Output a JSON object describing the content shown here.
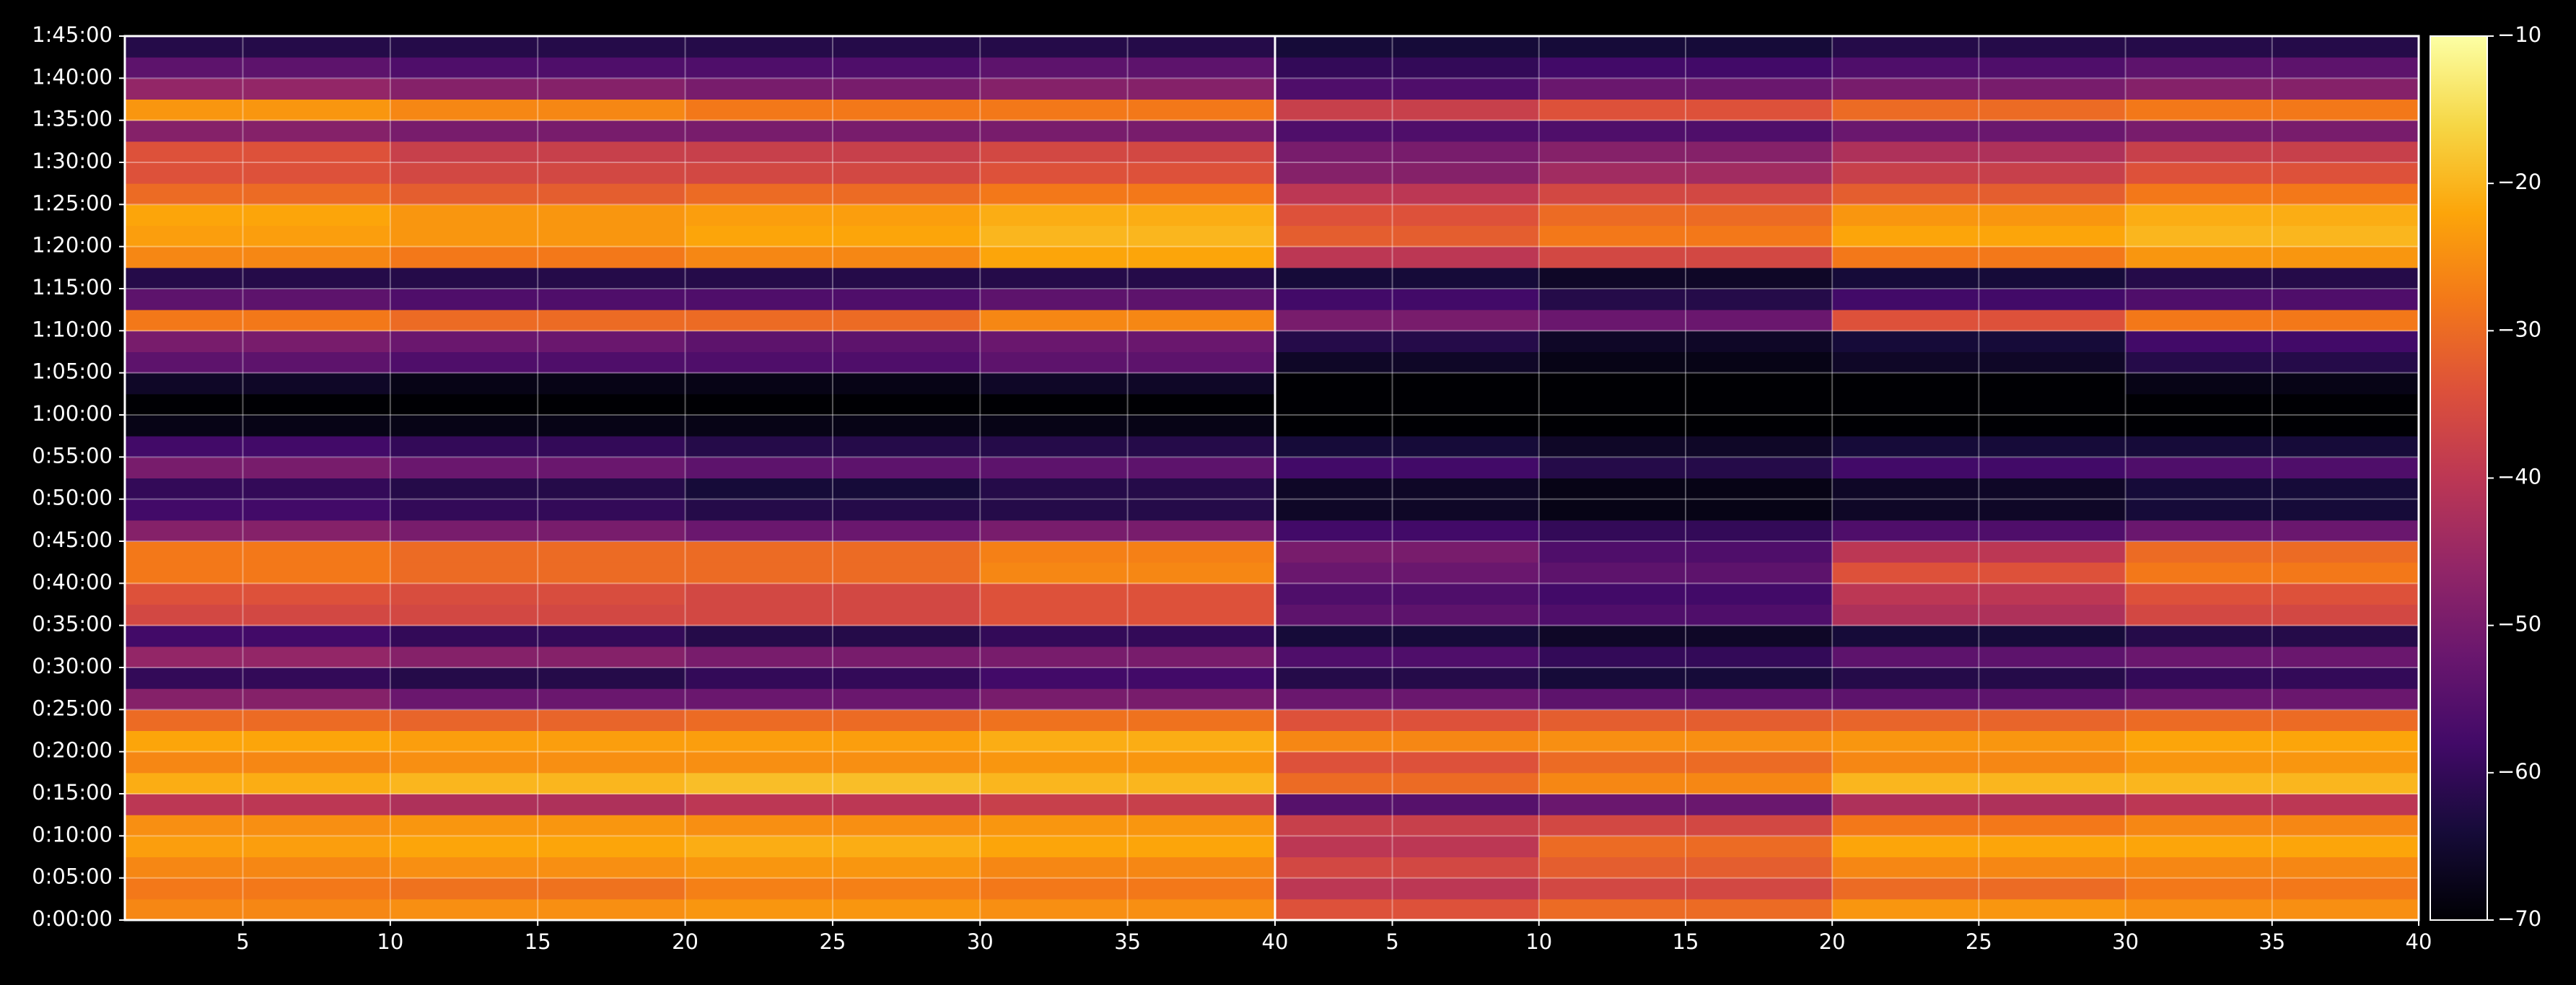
{
  "chart_data": {
    "type": "heatmap",
    "colormap": "inferno",
    "grid": true,
    "ylim": [
      0,
      105
    ],
    "yticks": [
      {
        "value": 0,
        "label": "0:00:00"
      },
      {
        "value": 5,
        "label": "0:05:00"
      },
      {
        "value": 10,
        "label": "0:10:00"
      },
      {
        "value": 15,
        "label": "0:15:00"
      },
      {
        "value": 20,
        "label": "0:20:00"
      },
      {
        "value": 25,
        "label": "0:25:00"
      },
      {
        "value": 30,
        "label": "0:30:00"
      },
      {
        "value": 35,
        "label": "0:35:00"
      },
      {
        "value": 40,
        "label": "0:40:00"
      },
      {
        "value": 45,
        "label": "0:45:00"
      },
      {
        "value": 50,
        "label": "0:50:00"
      },
      {
        "value": 55,
        "label": "0:55:00"
      },
      {
        "value": 60,
        "label": "1:00:00"
      },
      {
        "value": 65,
        "label": "1:05:00"
      },
      {
        "value": 70,
        "label": "1:10:00"
      },
      {
        "value": 75,
        "label": "1:15:00"
      },
      {
        "value": 80,
        "label": "1:20:00"
      },
      {
        "value": 85,
        "label": "1:25:00"
      },
      {
        "value": 90,
        "label": "1:30:00"
      },
      {
        "value": 95,
        "label": "1:35:00"
      },
      {
        "value": 100,
        "label": "1:40:00"
      },
      {
        "value": 105,
        "label": "1:45:00"
      }
    ],
    "y_edges": [
      0,
      2.5,
      5,
      7.5,
      10,
      12.5,
      15,
      17.5,
      20,
      22.5,
      25,
      27.5,
      30,
      32.5,
      35,
      37.5,
      40,
      42.5,
      45,
      47.5,
      50,
      52.5,
      55,
      57.5,
      60,
      62.5,
      65,
      67.5,
      70,
      72.5,
      75,
      77.5,
      80,
      82.5,
      85,
      87.5,
      90,
      92.5,
      95,
      97.5,
      100,
      102.5,
      105
    ],
    "colorbar": {
      "zlim": [
        -70,
        -10
      ],
      "ticks": [
        {
          "value": -10,
          "label": "−10"
        },
        {
          "value": -20,
          "label": "−20"
        },
        {
          "value": -30,
          "label": "−30"
        },
        {
          "value": -40,
          "label": "−40"
        },
        {
          "value": -50,
          "label": "−50"
        },
        {
          "value": -60,
          "label": "−60"
        },
        {
          "value": -70,
          "label": "−70"
        }
      ]
    },
    "panels": [
      {
        "xlim": [
          1,
          40
        ],
        "xticks": [
          5,
          10,
          15,
          20,
          25,
          30,
          35,
          40
        ],
        "x_edges": [
          1,
          10,
          20,
          30,
          40
        ],
        "values": [
          [
            -26,
            -25,
            -24,
            -25
          ],
          [
            -28,
            -29,
            -27,
            -28
          ],
          [
            -26,
            -25,
            -24,
            -26
          ],
          [
            -23,
            -22,
            -21,
            -22
          ],
          [
            -25,
            -24,
            -25,
            -24
          ],
          [
            -40,
            -42,
            -40,
            -38
          ],
          [
            -21,
            -20,
            -19,
            -20
          ],
          [
            -26,
            -25,
            -25,
            -24
          ],
          [
            -22,
            -23,
            -23,
            -21
          ],
          [
            -30,
            -31,
            -30,
            -29
          ],
          [
            -48,
            -52,
            -52,
            -50
          ],
          [
            -60,
            -62,
            -60,
            -58
          ],
          [
            -46,
            -48,
            -50,
            -50
          ],
          [
            -58,
            -60,
            -62,
            -60
          ],
          [
            -36,
            -36,
            -36,
            -34
          ],
          [
            -34,
            -35,
            -36,
            -34
          ],
          [
            -28,
            -30,
            -30,
            -26
          ],
          [
            -28,
            -30,
            -30,
            -27
          ],
          [
            -48,
            -50,
            -52,
            -50
          ],
          [
            -58,
            -60,
            -62,
            -62
          ],
          [
            -60,
            -62,
            -64,
            -62
          ],
          [
            -50,
            -52,
            -54,
            -54
          ],
          [
            -58,
            -60,
            -62,
            -62
          ],
          [
            -68,
            -68,
            -68,
            -68
          ],
          [
            -70,
            -70,
            -70,
            -70
          ],
          [
            -66,
            -68,
            -68,
            -66
          ],
          [
            -54,
            -56,
            -56,
            -54
          ],
          [
            -50,
            -52,
            -54,
            -52
          ],
          [
            -28,
            -30,
            -30,
            -26
          ],
          [
            -54,
            -56,
            -56,
            -54
          ],
          [
            -62,
            -62,
            -62,
            -62
          ],
          [
            -26,
            -28,
            -26,
            -22
          ],
          [
            -23,
            -24,
            -22,
            -20
          ],
          [
            -22,
            -24,
            -23,
            -21
          ],
          [
            -30,
            -32,
            -30,
            -28
          ],
          [
            -34,
            -36,
            -36,
            -34
          ],
          [
            -34,
            -38,
            -38,
            -36
          ],
          [
            -48,
            -50,
            -50,
            -50
          ],
          [
            -24,
            -26,
            -28,
            -28
          ],
          [
            -46,
            -48,
            -50,
            -48
          ],
          [
            -54,
            -56,
            -56,
            -54
          ],
          [
            -62,
            -62,
            -62,
            -62
          ]
        ]
      },
      {
        "xlim": [
          1,
          40
        ],
        "xticks": [
          5,
          10,
          15,
          20,
          25,
          30,
          35,
          40
        ],
        "x_edges": [
          1,
          10,
          20,
          30,
          40
        ],
        "values": [
          [
            -34,
            -30,
            -24,
            -25
          ],
          [
            -40,
            -36,
            -30,
            -28
          ],
          [
            -36,
            -32,
            -26,
            -26
          ],
          [
            -40,
            -30,
            -22,
            -22
          ],
          [
            -38,
            -36,
            -28,
            -26
          ],
          [
            -55,
            -52,
            -42,
            -40
          ],
          [
            -30,
            -26,
            -20,
            -20
          ],
          [
            -34,
            -30,
            -26,
            -24
          ],
          [
            -26,
            -25,
            -24,
            -22
          ],
          [
            -34,
            -32,
            -31,
            -30
          ],
          [
            -52,
            -54,
            -54,
            -52
          ],
          [
            -62,
            -64,
            -62,
            -60
          ],
          [
            -56,
            -60,
            -54,
            -52
          ],
          [
            -64,
            -66,
            -64,
            -62
          ],
          [
            -54,
            -56,
            -42,
            -36
          ],
          [
            -56,
            -58,
            -40,
            -34
          ],
          [
            -52,
            -54,
            -34,
            -28
          ],
          [
            -50,
            -56,
            -40,
            -30
          ],
          [
            -58,
            -60,
            -56,
            -52
          ],
          [
            -66,
            -68,
            -66,
            -64
          ],
          [
            -66,
            -68,
            -66,
            -64
          ],
          [
            -58,
            -62,
            -58,
            -56
          ],
          [
            -64,
            -66,
            -64,
            -64
          ],
          [
            -70,
            -70,
            -70,
            -70
          ],
          [
            -70,
            -70,
            -70,
            -70
          ],
          [
            -70,
            -70,
            -70,
            -68
          ],
          [
            -66,
            -68,
            -66,
            -62
          ],
          [
            -62,
            -66,
            -64,
            -58
          ],
          [
            -50,
            -52,
            -34,
            -28
          ],
          [
            -58,
            -62,
            -58,
            -56
          ],
          [
            -64,
            -66,
            -64,
            -62
          ],
          [
            -40,
            -36,
            -28,
            -24
          ],
          [
            -32,
            -28,
            -22,
            -20
          ],
          [
            -34,
            -30,
            -24,
            -21
          ],
          [
            -40,
            -36,
            -32,
            -28
          ],
          [
            -48,
            -44,
            -38,
            -34
          ],
          [
            -50,
            -48,
            -42,
            -38
          ],
          [
            -56,
            -56,
            -52,
            -50
          ],
          [
            -38,
            -34,
            -30,
            -28
          ],
          [
            -56,
            -52,
            -50,
            -48
          ],
          [
            -60,
            -58,
            -56,
            -54
          ],
          [
            -64,
            -64,
            -62,
            -62
          ]
        ]
      }
    ]
  }
}
